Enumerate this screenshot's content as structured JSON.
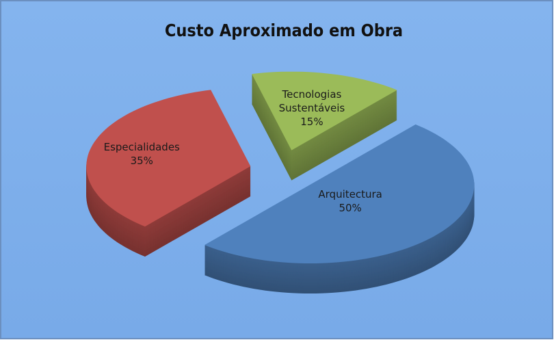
{
  "chart_data": {
    "type": "pie",
    "title": "Custo Aproximado em Obra",
    "categories": [
      "Arquitectura",
      "Especialidades",
      "Tecnologias Sustentáveis"
    ],
    "values": [
      50,
      35,
      15
    ],
    "value_labels": [
      "50%",
      "35%",
      "15%"
    ],
    "colors": [
      "#4f81bd",
      "#c0504d",
      "#9bbb59"
    ]
  }
}
